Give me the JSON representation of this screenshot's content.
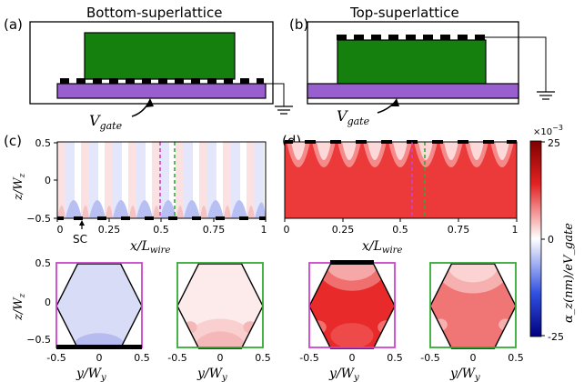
{
  "panel_labels": [
    "(a)",
    "(b)",
    "(c)",
    "(d)"
  ],
  "titles": {
    "bottom": "Bottom-superlattice",
    "top": "Top-superlattice"
  },
  "vgate_label": "V",
  "vgate_sub": "gate",
  "sc_label": "SC",
  "axes": {
    "z_label": "z/W",
    "z_sub": "z",
    "x_label": "x/L",
    "x_sub": "wire",
    "y_label": "y/W",
    "y_sub": "y",
    "z_ticks": [
      "0.5",
      "0",
      "−0.5"
    ],
    "x_ticks": [
      "0",
      "0.25",
      "0.5",
      "0.75",
      "1"
    ],
    "y_ticks": [
      "-0.5",
      "0",
      "0.5"
    ]
  },
  "colorbar": {
    "label": "α_z(nm)/eV_gate",
    "exponent": "×10",
    "exponent_power": "−3",
    "max": "25",
    "mid": "0",
    "min": "-25",
    "colors": {
      "high": "#7f0000",
      "mid_high": "#e32222",
      "zero": "#ffffff",
      "mid_low": "#3050e0",
      "low": "#00007f"
    }
  },
  "colors": {
    "nanowire": "#16800f",
    "gate": "#9a5fcf",
    "contact": "#000000",
    "magenta": "#cc44cc",
    "green": "#33aa33"
  }
}
